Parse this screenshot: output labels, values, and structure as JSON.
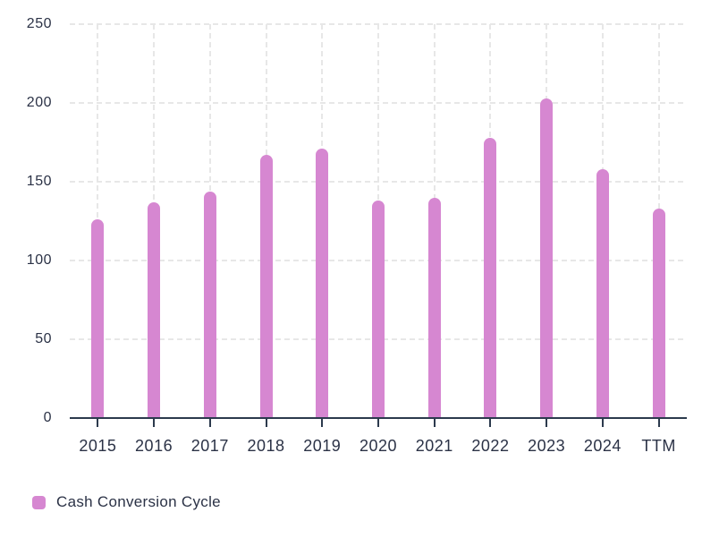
{
  "chart_data": {
    "type": "bar",
    "title": "",
    "categories": [
      "2015",
      "2016",
      "2017",
      "2018",
      "2019",
      "2020",
      "2021",
      "2022",
      "2023",
      "2024",
      "TTM"
    ],
    "series": [
      {
        "name": "Cash Conversion Cycle",
        "values": [
          126,
          137,
          144,
          167,
          171,
          138,
          140,
          178,
          203,
          158,
          133
        ]
      }
    ],
    "xlabel": "",
    "ylabel": "",
    "ylim": [
      0,
      250
    ],
    "y_ticks": [
      0,
      50,
      100,
      150,
      200,
      250
    ],
    "grid": "dashed-horizontal-and-vertical",
    "legend_position": "bottom-left"
  },
  "legend": {
    "items": [
      {
        "label": "Cash Conversion Cycle",
        "color": "#d687d1"
      }
    ]
  },
  "colors": {
    "bar": "#d687d1",
    "text": "#2b3246",
    "axis": "#2c3a4d",
    "grid": "#e7e7e7",
    "background": "#ffffff"
  }
}
